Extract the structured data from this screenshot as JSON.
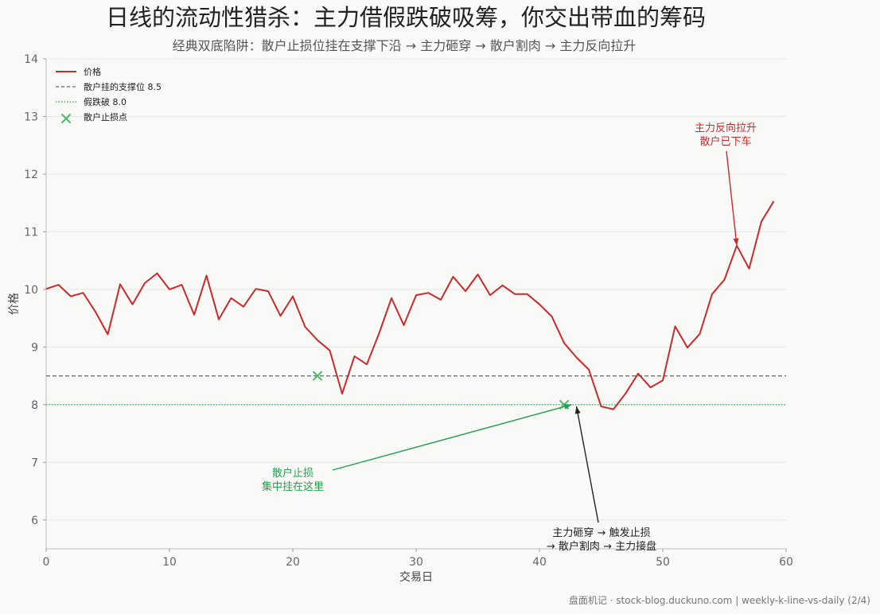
{
  "chart_data": {
    "type": "line",
    "title": "日线的流动性猎杀：主力借假跌破吸筹，你交出带血的筹码",
    "subtitle": "经典双底陷阱：散户止损位挂在支撑下沿 → 主力砸穿 → 散户割肉 → 主力反向拉升",
    "xlabel": "交易日",
    "ylabel": "价格",
    "xlim": [
      0,
      60
    ],
    "ylim": [
      5.5,
      14
    ],
    "x_ticks": [
      0,
      10,
      20,
      30,
      40,
      50,
      60
    ],
    "y_ticks": [
      6,
      7,
      8,
      9,
      10,
      11,
      12,
      13,
      14
    ],
    "grid": "horizontal",
    "legend_position": "top-left",
    "series": [
      {
        "name": "价格",
        "color": "#cc2a2a",
        "x": [
          0,
          1,
          2,
          3,
          4,
          5,
          6,
          7,
          8,
          9,
          10,
          11,
          12,
          13,
          14,
          15,
          16,
          17,
          18,
          19,
          20,
          21,
          22,
          23,
          24,
          25,
          26,
          27,
          28,
          29,
          30,
          31,
          32,
          33,
          34,
          35,
          36,
          37,
          38,
          39,
          40,
          41,
          42,
          43,
          44,
          45,
          46,
          47,
          48,
          49,
          50,
          51,
          52,
          53,
          54,
          55,
          56,
          57,
          58,
          59
        ],
        "y": [
          10.01,
          10.08,
          9.88,
          9.94,
          9.61,
          9.22,
          10.09,
          9.74,
          10.11,
          10.28,
          10.0,
          10.08,
          9.56,
          10.24,
          9.48,
          9.85,
          9.7,
          10.01,
          9.97,
          9.54,
          9.88,
          9.35,
          9.12,
          8.94,
          8.19,
          8.84,
          8.7,
          9.24,
          9.85,
          9.38,
          9.9,
          9.94,
          9.82,
          10.22,
          9.97,
          10.26,
          9.9,
          10.07,
          9.92,
          9.92,
          9.74,
          9.53,
          9.07,
          8.82,
          8.61,
          7.97,
          7.92,
          8.2,
          8.54,
          8.3,
          8.42,
          9.36,
          8.99,
          9.23,
          9.92,
          10.17,
          10.76,
          10.36,
          11.18,
          11.53
        ]
      }
    ],
    "reference_lines": [
      {
        "name": "散户挂的支撑位 8.5",
        "y": 8.5,
        "color": "#666666",
        "style": "dashed"
      },
      {
        "name": "假跌破 8.0",
        "y": 8.0,
        "color": "#22a04c",
        "style": "dotted"
      }
    ],
    "markers": {
      "name": "散户止损点",
      "color": "#4cbb6c",
      "points": [
        {
          "x": 22,
          "y": 8.5
        },
        {
          "x": 42,
          "y": 8.0
        }
      ]
    },
    "annotations": [
      {
        "lines": [
          "主力反向拉升",
          "散户已下车"
        ],
        "color": "#cc2a2a",
        "target": {
          "x": 56,
          "y": 10.76
        }
      },
      {
        "lines": [
          "散户止损",
          "集中挂在这里"
        ],
        "color": "#22a04c",
        "target": {
          "x": 42.6,
          "y": 8.0
        }
      },
      {
        "lines": [
          "主力砸穿 → 触发止损",
          "→ 散户割肉 → 主力接盘"
        ],
        "color": "#222222",
        "target": {
          "x": 43,
          "y": 7.97
        }
      }
    ]
  },
  "footer": "盘面机记 · stock-blog.duckuno.com | weekly-k-line-vs-daily (2/4)"
}
